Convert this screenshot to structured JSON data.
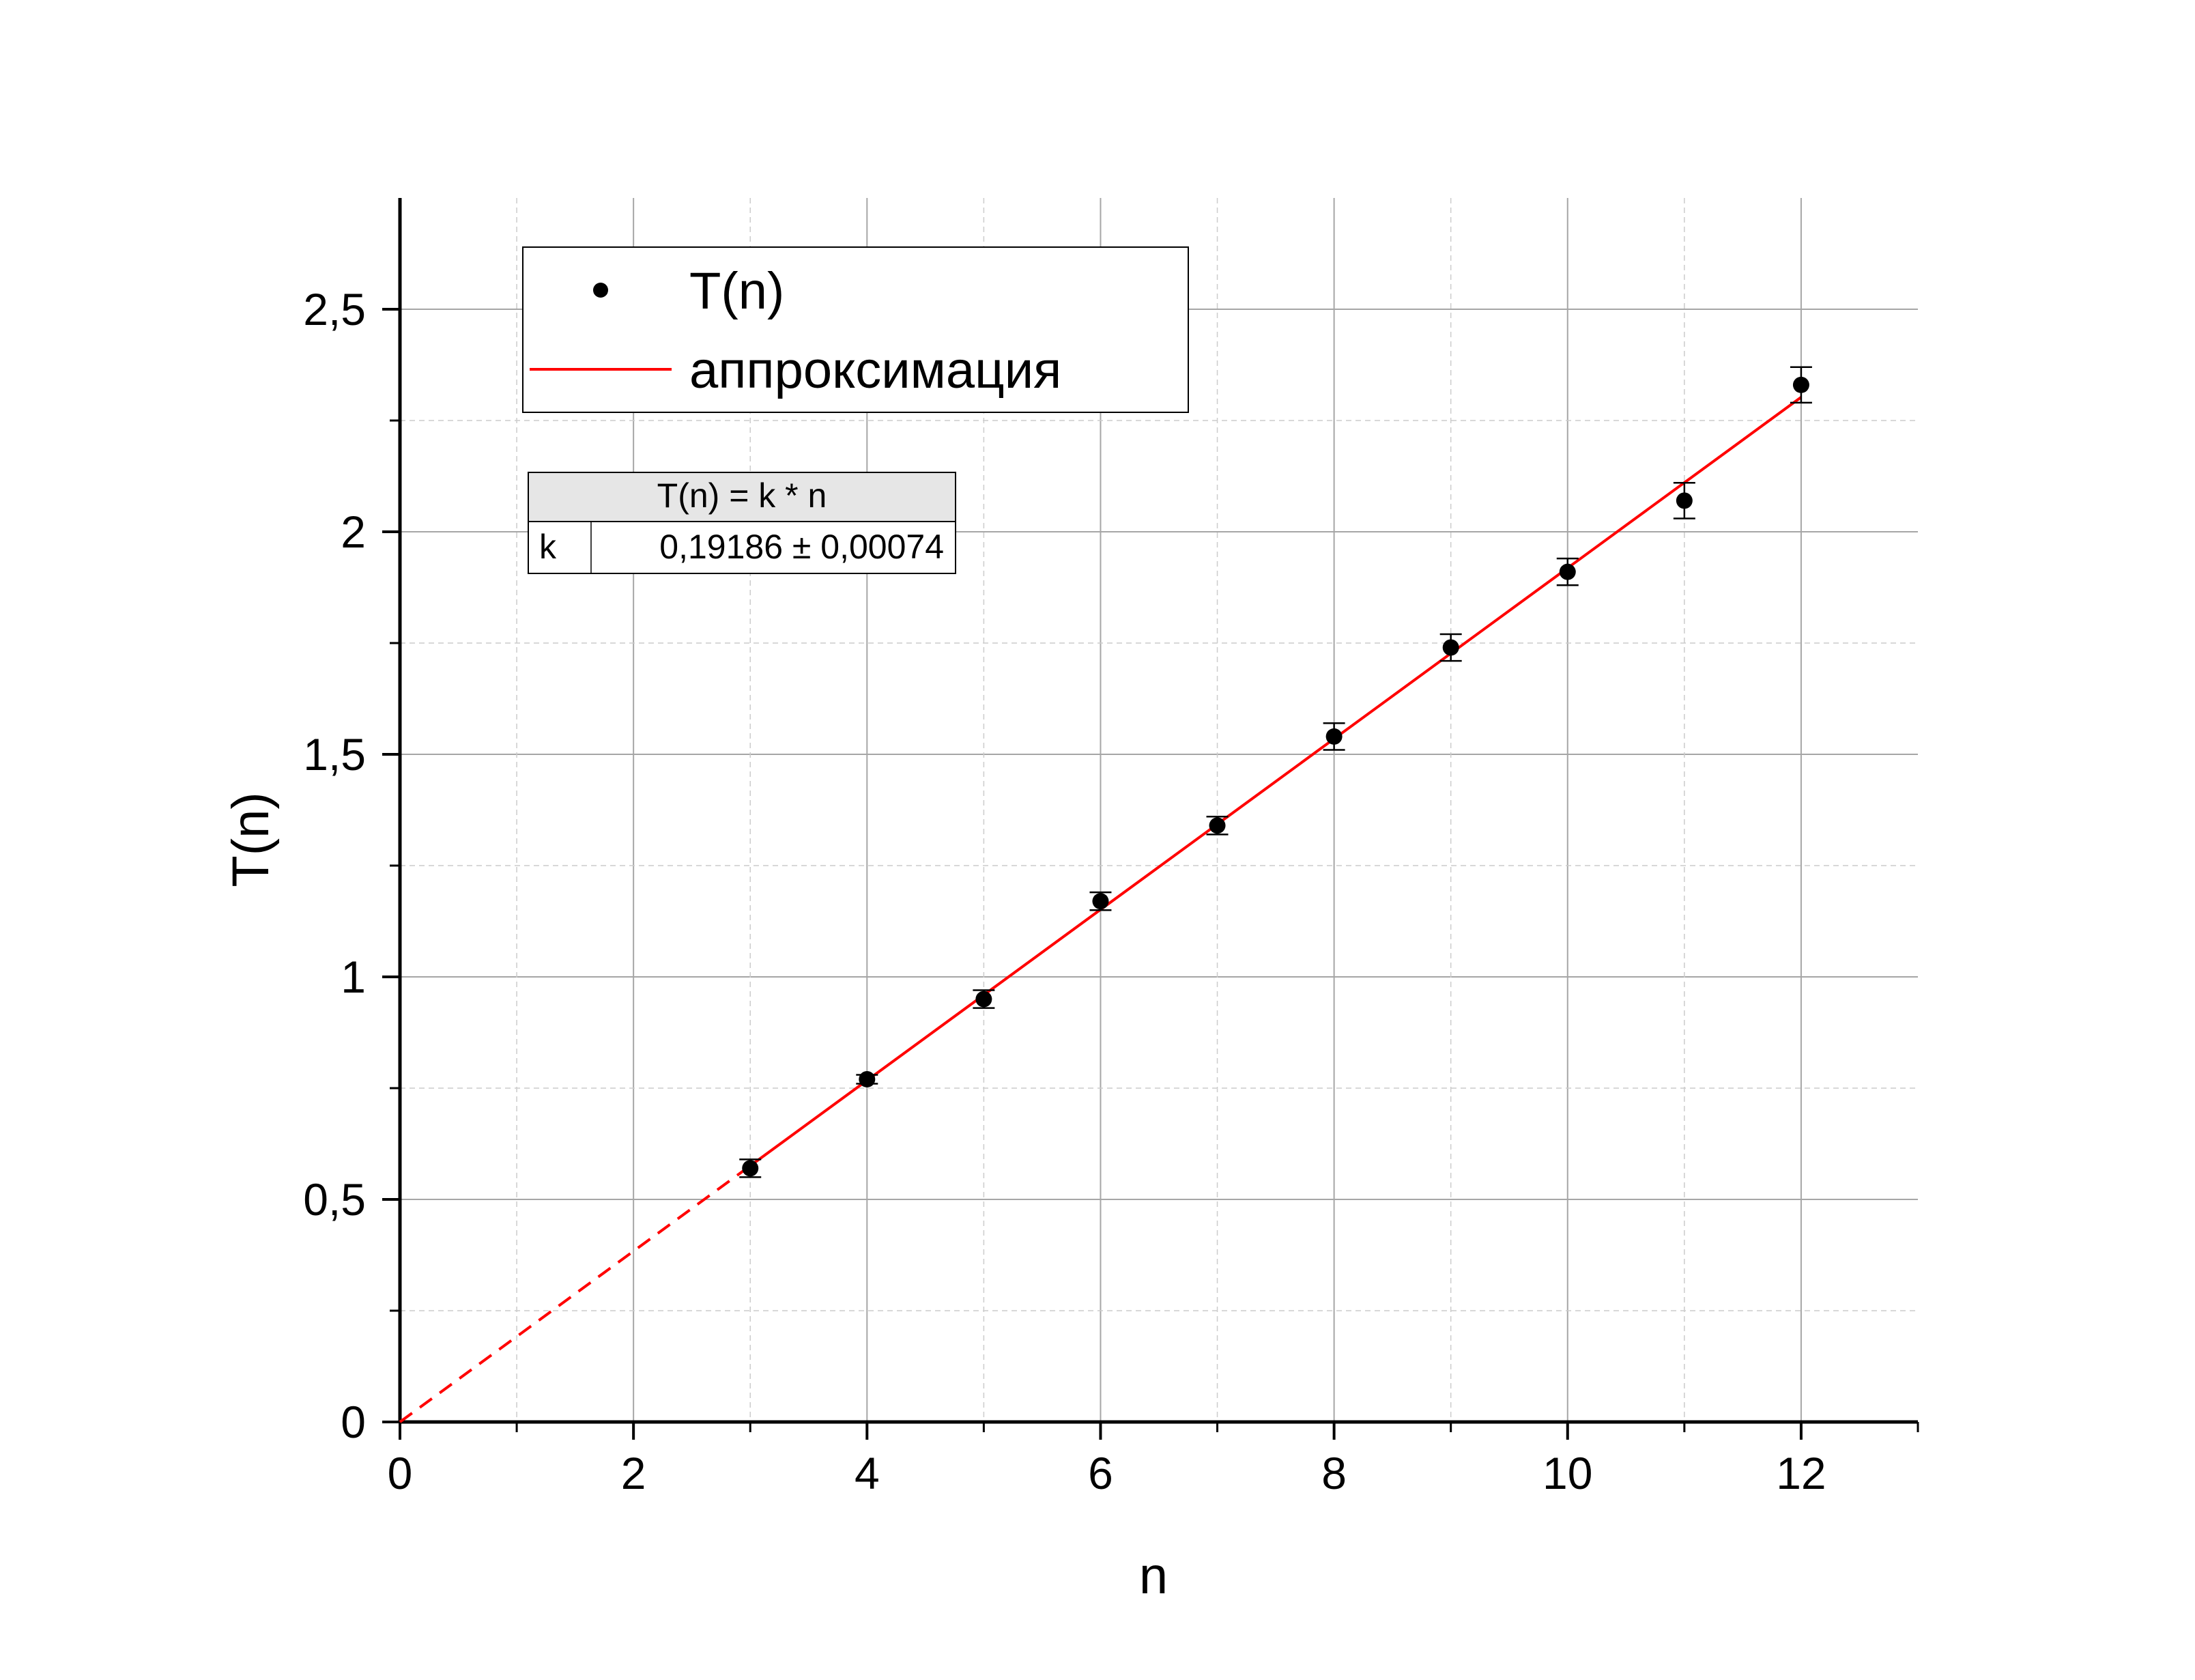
{
  "chart_data": {
    "type": "scatter",
    "xlabel": "n",
    "ylabel": "T(n)",
    "xlim": [
      0,
      13
    ],
    "ylim": [
      0,
      2.75
    ],
    "x_ticks": [
      0,
      2,
      4,
      6,
      8,
      10,
      12
    ],
    "x_tick_labels": [
      "0",
      "2",
      "4",
      "6",
      "8",
      "10",
      "12"
    ],
    "y_ticks": [
      0,
      0.5,
      1,
      1.5,
      2,
      2.5
    ],
    "y_tick_labels": [
      "0",
      "0,5",
      "1",
      "1,5",
      "2",
      "2,5"
    ],
    "grid": true,
    "series": [
      {
        "name": "T(n)",
        "kind": "points",
        "color": "#000000",
        "x": [
          3,
          4,
          5,
          6,
          7,
          8,
          9,
          10,
          11,
          12
        ],
        "y": [
          0.57,
          0.77,
          0.95,
          1.17,
          1.34,
          1.54,
          1.74,
          1.91,
          2.07,
          2.33
        ],
        "yerr": [
          0.02,
          0.01,
          0.02,
          0.02,
          0.02,
          0.03,
          0.03,
          0.03,
          0.04,
          0.04
        ]
      },
      {
        "name": "аппроксимация",
        "kind": "fit-line",
        "color": "#ff0000",
        "slope": 0.19186,
        "x_solid": [
          2.9,
          12
        ],
        "x_dashed": [
          0,
          2.9
        ]
      }
    ],
    "legend": {
      "position": "top-left",
      "entries": [
        "T(n)",
        "аппроксимация"
      ]
    },
    "fit_table": {
      "header": "T(n) = k * n",
      "param": "k",
      "value": "0,19186 ± 0,00074"
    }
  }
}
